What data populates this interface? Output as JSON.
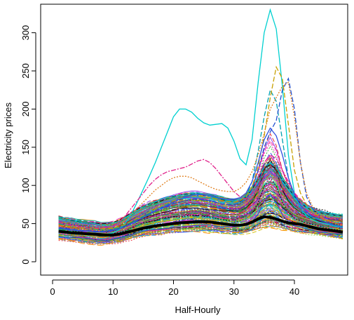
{
  "chart_data": {
    "type": "line",
    "title": "",
    "xlabel": "Half-Hourly",
    "ylabel": "Electricity prices",
    "xlim": [
      1,
      48
    ],
    "ylim": [
      0,
      330
    ],
    "x_ticks": [
      0,
      10,
      20,
      30,
      40
    ],
    "y_ticks": [
      0,
      50,
      100,
      150,
      200,
      250,
      300
    ],
    "grid": false,
    "legend": "none",
    "num_series_approx": 200,
    "x": [
      1,
      2,
      3,
      4,
      5,
      6,
      7,
      8,
      9,
      10,
      11,
      12,
      13,
      14,
      15,
      16,
      17,
      18,
      19,
      20,
      21,
      22,
      23,
      24,
      25,
      26,
      27,
      28,
      29,
      30,
      31,
      32,
      33,
      34,
      35,
      36,
      37,
      38,
      39,
      40,
      41,
      42,
      43,
      44,
      45,
      46,
      47,
      48
    ],
    "mean_series": {
      "name": "mean",
      "color": "#000000",
      "values": [
        40,
        39,
        38,
        37.5,
        37,
        36.5,
        36,
        35.5,
        35,
        35,
        36,
        38,
        40,
        42,
        44,
        45.5,
        47,
        48,
        49,
        50,
        51,
        51.5,
        52,
        52.5,
        52.5,
        52,
        51,
        50,
        49,
        48,
        48,
        49,
        52,
        56,
        59,
        58,
        56,
        53,
        51,
        50,
        49,
        47,
        45,
        43,
        42,
        41,
        40,
        39
      ]
    },
    "highlight_series": [
      {
        "name": "spike-day",
        "color": "#00d0d0",
        "style": "solid",
        "values": [
          42,
          40,
          38,
          37,
          36,
          36,
          35,
          35,
          36,
          38,
          42,
          50,
          62,
          78,
          95,
          112,
          130,
          150,
          170,
          190,
          200,
          200,
          196,
          188,
          182,
          179,
          180,
          181,
          175,
          158,
          135,
          127,
          160,
          235,
          300,
          330,
          305,
          230,
          140,
          90,
          70,
          60,
          55,
          52,
          50,
          48,
          46,
          45
        ]
      },
      {
        "name": "dash-peak-1",
        "color": "#00a0b0",
        "style": "dashed",
        "values": [
          50,
          48,
          46,
          45,
          44,
          43,
          42,
          42,
          42,
          43,
          45,
          48,
          52,
          56,
          60,
          64,
          68,
          72,
          76,
          80,
          84,
          86,
          88,
          89,
          88,
          86,
          84,
          82,
          80,
          79,
          80,
          86,
          105,
          145,
          190,
          225,
          210,
          160,
          110,
          80,
          70,
          62,
          58,
          55,
          52,
          50,
          48,
          47
        ]
      },
      {
        "name": "dash-peak-2",
        "color": "#2050d0",
        "style": "dashed",
        "values": [
          45,
          44,
          43,
          42,
          41,
          41,
          40,
          40,
          40,
          41,
          43,
          46,
          50,
          54,
          58,
          62,
          66,
          70,
          73,
          76,
          78,
          80,
          82,
          82,
          81,
          80,
          78,
          76,
          75,
          75,
          77,
          82,
          95,
          120,
          150,
          170,
          185,
          225,
          240,
          200,
          130,
          85,
          70,
          62,
          56,
          52,
          50,
          48
        ]
      },
      {
        "name": "dash-peak-3",
        "color": "#c8a000",
        "style": "dashed",
        "values": [
          48,
          47,
          46,
          45,
          44,
          44,
          43,
          43,
          43,
          44,
          46,
          49,
          53,
          57,
          61,
          65,
          69,
          73,
          77,
          80,
          83,
          85,
          86,
          86,
          85,
          84,
          82,
          80,
          79,
          78,
          80,
          85,
          98,
          125,
          165,
          215,
          255,
          240,
          180,
          120,
          90,
          75,
          66,
          60,
          56,
          53,
          50,
          48
        ]
      },
      {
        "name": "dash-pink",
        "color": "#e0208a",
        "style": "dashdot",
        "values": [
          52,
          50,
          48,
          46,
          45,
          44,
          44,
          44,
          45,
          47,
          52,
          60,
          70,
          80,
          90,
          100,
          108,
          114,
          118,
          120,
          122,
          124,
          128,
          132,
          134,
          130,
          122,
          112,
          102,
          92,
          85,
          82,
          90,
          110,
          130,
          140,
          135,
          120,
          105,
          90,
          78,
          68,
          62,
          58,
          55,
          52,
          50,
          49
        ]
      },
      {
        "name": "dot-orange",
        "color": "#e08020",
        "style": "dotted",
        "values": [
          46,
          45,
          44,
          43,
          42,
          42,
          41,
          41,
          42,
          44,
          48,
          54,
          62,
          70,
          78,
          86,
          94,
          100,
          106,
          110,
          112,
          112,
          110,
          106,
          102,
          98,
          95,
          93,
          92,
          92,
          96,
          104,
          118,
          140,
          168,
          200,
          215,
          230,
          235,
          190,
          130,
          90,
          72,
          62,
          56,
          52,
          49,
          47
        ]
      },
      {
        "name": "solid-blue",
        "color": "#3050e0",
        "style": "solid",
        "values": [
          44,
          43,
          42,
          41,
          40,
          40,
          39,
          39,
          40,
          41,
          43,
          46,
          50,
          54,
          58,
          62,
          66,
          70,
          74,
          78,
          82,
          85,
          87,
          88,
          88,
          87,
          85,
          83,
          82,
          82,
          84,
          90,
          105,
          130,
          160,
          175,
          165,
          140,
          110,
          88,
          74,
          65,
          59,
          55,
          52,
          49,
          47,
          46
        ]
      }
    ],
    "band_profiles": {
      "low": [
        30,
        29,
        28,
        27,
        26,
        25,
        24,
        24,
        24,
        25,
        26,
        28,
        30,
        32,
        34,
        35,
        36,
        37,
        38,
        39,
        39,
        40,
        40,
        40,
        40,
        39,
        39,
        38,
        38,
        37,
        37,
        38,
        40,
        42,
        44,
        44,
        43,
        41,
        40,
        39,
        38,
        37,
        36,
        35,
        34,
        33,
        32,
        31
      ],
      "high": [
        58,
        56,
        55,
        54,
        53,
        52,
        51,
        50,
        50,
        51,
        54,
        58,
        63,
        68,
        72,
        76,
        79,
        82,
        84,
        86,
        88,
        89,
        90,
        90,
        89,
        88,
        86,
        84,
        82,
        81,
        82,
        88,
        98,
        112,
        126,
        132,
        126,
        112,
        100,
        88,
        80,
        74,
        70,
        67,
        65,
        63,
        62,
        61
      ]
    },
    "palette": [
      "#000000",
      "#e8202a",
      "#20b020",
      "#2040e0",
      "#00c8d0",
      "#e020b0",
      "#d0c000",
      "#808080",
      "#ff8c00",
      "#8a2be2",
      "#2e8b57",
      "#1e90ff",
      "#ff1493",
      "#8b4513",
      "#00ced1",
      "#9acd32"
    ]
  }
}
